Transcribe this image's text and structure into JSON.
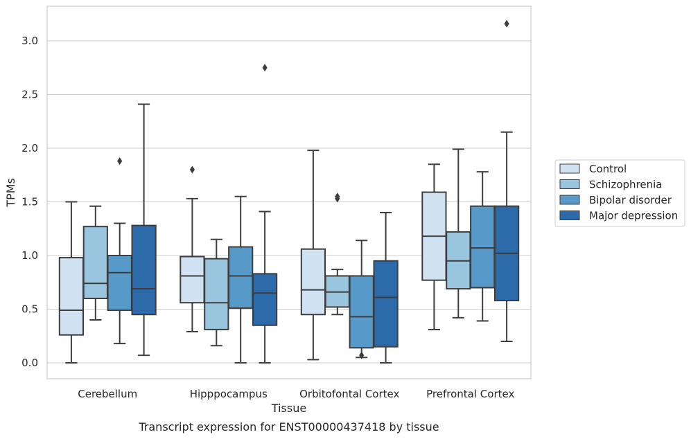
{
  "chart_data": {
    "type": "box",
    "xlabel": "Tissue",
    "ylabel": "TPMs",
    "caption": "Transcript expression for ENST00000437418 by tissue",
    "ylim": [
      -0.15,
      3.3
    ],
    "yticks": [
      0.0,
      0.5,
      1.0,
      1.5,
      2.0,
      2.5,
      3.0
    ],
    "ytick_labels": [
      "0.0",
      "0.5",
      "1.0",
      "1.5",
      "2.0",
      "2.5",
      "3.0"
    ],
    "grid": "horizontal",
    "legend_position": "right",
    "categories": [
      "Cerebellum",
      "Hipppocampus",
      "Orbitofontal Cortex",
      "Prefrontal Cortex"
    ],
    "series": [
      {
        "name": "Control",
        "color": "#d1e2f2",
        "boxes": [
          {
            "whislo": 0.0,
            "q1": 0.26,
            "med": 0.49,
            "q3": 0.98,
            "whishi": 1.5,
            "fliers": []
          },
          {
            "whislo": 0.29,
            "q1": 0.56,
            "med": 0.81,
            "q3": 0.99,
            "whishi": 1.53,
            "fliers": [
              1.8
            ]
          },
          {
            "whislo": 0.03,
            "q1": 0.45,
            "med": 0.68,
            "q3": 1.06,
            "whishi": 1.98,
            "fliers": []
          },
          {
            "whislo": 0.31,
            "q1": 0.77,
            "med": 1.18,
            "q3": 1.59,
            "whishi": 1.85,
            "fliers": []
          }
        ]
      },
      {
        "name": "Schizophrenia",
        "color": "#9ac5de",
        "boxes": [
          {
            "whislo": 0.4,
            "q1": 0.6,
            "med": 0.74,
            "q3": 1.27,
            "whishi": 1.46,
            "fliers": []
          },
          {
            "whislo": 0.16,
            "q1": 0.31,
            "med": 0.56,
            "q3": 0.97,
            "whishi": 1.15,
            "fliers": []
          },
          {
            "whislo": 0.45,
            "q1": 0.52,
            "med": 0.66,
            "q3": 0.81,
            "whishi": 0.87,
            "fliers": [
              1.53,
              1.55
            ]
          },
          {
            "whislo": 0.42,
            "q1": 0.69,
            "med": 0.95,
            "q3": 1.22,
            "whishi": 1.99,
            "fliers": []
          }
        ]
      },
      {
        "name": "Bipolar disorder",
        "color": "#5799c8",
        "boxes": [
          {
            "whislo": 0.18,
            "q1": 0.49,
            "med": 0.84,
            "q3": 1.0,
            "whishi": 1.3,
            "fliers": [
              1.88
            ]
          },
          {
            "whislo": 0.0,
            "q1": 0.51,
            "med": 0.81,
            "q3": 1.08,
            "whishi": 1.55,
            "fliers": []
          },
          {
            "whislo": 0.05,
            "q1": 0.14,
            "med": 0.43,
            "q3": 0.81,
            "whishi": 1.14,
            "fliers": [
              0.07
            ]
          },
          {
            "whislo": 0.39,
            "q1": 0.7,
            "med": 1.07,
            "q3": 1.46,
            "whishi": 1.78,
            "fliers": []
          }
        ]
      },
      {
        "name": "Major depression",
        "color": "#2c6aa9",
        "boxes": [
          {
            "whislo": 0.07,
            "q1": 0.45,
            "med": 0.69,
            "q3": 1.28,
            "whishi": 2.41,
            "fliers": []
          },
          {
            "whislo": 0.0,
            "q1": 0.35,
            "med": 0.65,
            "q3": 0.83,
            "whishi": 1.41,
            "fliers": [
              2.75
            ]
          },
          {
            "whislo": 0.0,
            "q1": 0.15,
            "med": 0.61,
            "q3": 0.95,
            "whishi": 1.4,
            "fliers": []
          },
          {
            "whislo": 0.2,
            "q1": 0.58,
            "med": 1.02,
            "q3": 1.46,
            "whishi": 2.15,
            "fliers": [
              3.16
            ]
          }
        ]
      }
    ]
  }
}
